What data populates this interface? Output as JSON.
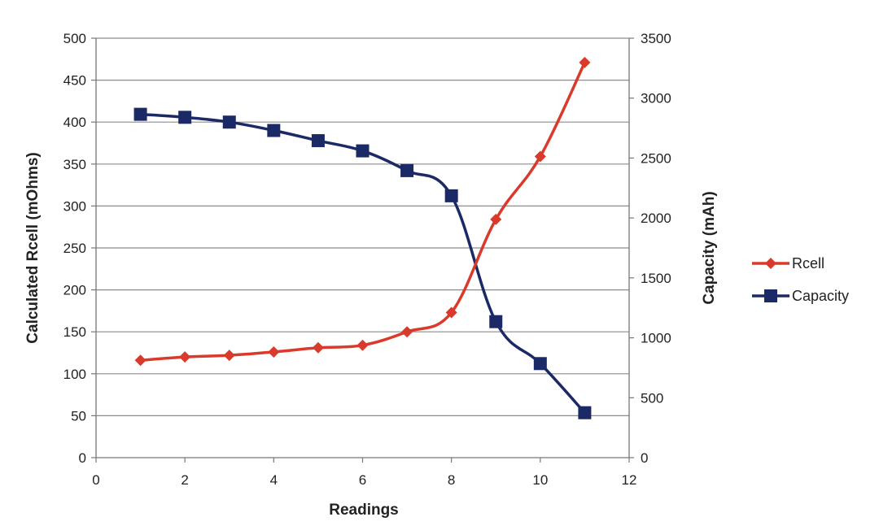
{
  "chart_data": {
    "type": "line",
    "xlabel": "Readings",
    "ylabel_left": "Calculated Rcell (mOhms)",
    "ylabel_right": "Capacity (mAh)",
    "xlim": [
      0,
      12
    ],
    "x_ticks": [
      "0",
      "2",
      "4",
      "6",
      "8",
      "10",
      "12"
    ],
    "ylim_left": [
      0,
      500
    ],
    "y_left_ticks": [
      "0",
      "50",
      "100",
      "150",
      "200",
      "250",
      "300",
      "350",
      "400",
      "450",
      "500"
    ],
    "ylim_right": [
      0,
      3500
    ],
    "y_right_ticks": [
      "0",
      "500",
      "1000",
      "1500",
      "2000",
      "2500",
      "3000",
      "3500"
    ],
    "grid": true,
    "legend_position": "right",
    "series": [
      {
        "name": "Rcell",
        "axis": "left",
        "color": "#d93a2b",
        "marker": "diamond",
        "x": [
          1,
          2,
          3,
          4,
          5,
          6,
          7,
          8,
          9,
          10,
          11
        ],
        "values": [
          116,
          120,
          122,
          126,
          131,
          134,
          150,
          173,
          284,
          359,
          471
        ]
      },
      {
        "name": "Capacity",
        "axis": "right",
        "color": "#1b2a66",
        "marker": "square",
        "x": [
          1,
          2,
          3,
          4,
          5,
          6,
          7,
          8,
          9,
          10,
          11
        ],
        "values": [
          2865,
          2840,
          2800,
          2730,
          2645,
          2560,
          2395,
          2185,
          1135,
          785,
          375
        ]
      }
    ]
  }
}
